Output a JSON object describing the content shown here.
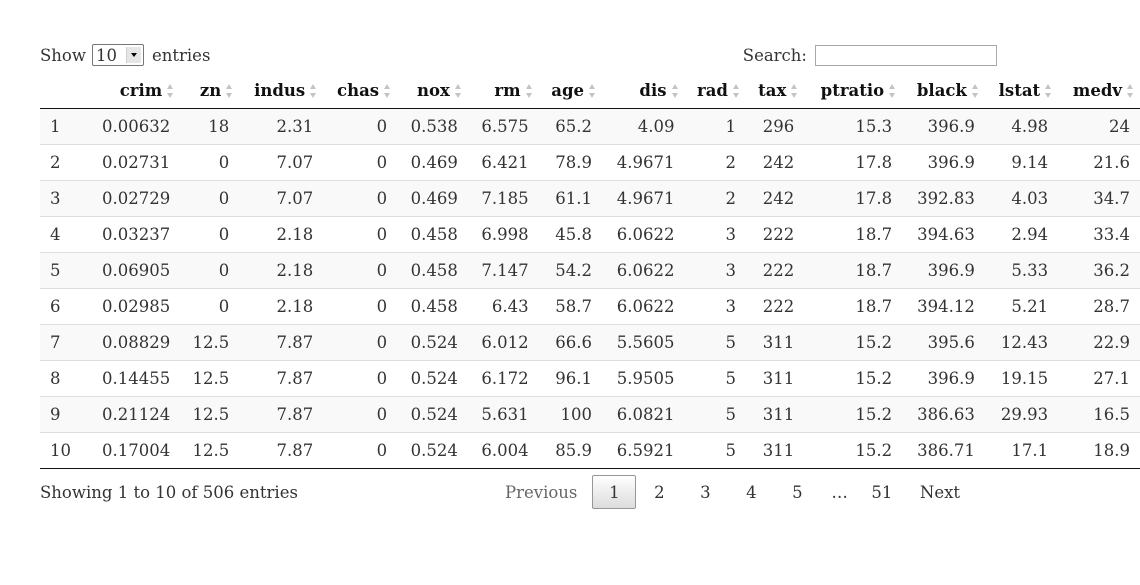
{
  "length": {
    "show_label": "Show",
    "selected": "10",
    "entries_label": "entries"
  },
  "search": {
    "label": "Search:",
    "value": ""
  },
  "table": {
    "columns": [
      "",
      "crim",
      "zn",
      "indus",
      "chas",
      "nox",
      "rm",
      "age",
      "dis",
      "rad",
      "tax",
      "ptratio",
      "black",
      "lstat",
      "medv"
    ],
    "rows": [
      [
        "1",
        "0.00632",
        "18",
        "2.31",
        "0",
        "0.538",
        "6.575",
        "65.2",
        "4.09",
        "1",
        "296",
        "15.3",
        "396.9",
        "4.98",
        "24"
      ],
      [
        "2",
        "0.02731",
        "0",
        "7.07",
        "0",
        "0.469",
        "6.421",
        "78.9",
        "4.9671",
        "2",
        "242",
        "17.8",
        "396.9",
        "9.14",
        "21.6"
      ],
      [
        "3",
        "0.02729",
        "0",
        "7.07",
        "0",
        "0.469",
        "7.185",
        "61.1",
        "4.9671",
        "2",
        "242",
        "17.8",
        "392.83",
        "4.03",
        "34.7"
      ],
      [
        "4",
        "0.03237",
        "0",
        "2.18",
        "0",
        "0.458",
        "6.998",
        "45.8",
        "6.0622",
        "3",
        "222",
        "18.7",
        "394.63",
        "2.94",
        "33.4"
      ],
      [
        "5",
        "0.06905",
        "0",
        "2.18",
        "0",
        "0.458",
        "7.147",
        "54.2",
        "6.0622",
        "3",
        "222",
        "18.7",
        "396.9",
        "5.33",
        "36.2"
      ],
      [
        "6",
        "0.02985",
        "0",
        "2.18",
        "0",
        "0.458",
        "6.43",
        "58.7",
        "6.0622",
        "3",
        "222",
        "18.7",
        "394.12",
        "5.21",
        "28.7"
      ],
      [
        "7",
        "0.08829",
        "12.5",
        "7.87",
        "0",
        "0.524",
        "6.012",
        "66.6",
        "5.5605",
        "5",
        "311",
        "15.2",
        "395.6",
        "12.43",
        "22.9"
      ],
      [
        "8",
        "0.14455",
        "12.5",
        "7.87",
        "0",
        "0.524",
        "6.172",
        "96.1",
        "5.9505",
        "5",
        "311",
        "15.2",
        "396.9",
        "19.15",
        "27.1"
      ],
      [
        "9",
        "0.21124",
        "12.5",
        "7.87",
        "0",
        "0.524",
        "5.631",
        "100",
        "6.0821",
        "5",
        "311",
        "15.2",
        "386.63",
        "29.93",
        "16.5"
      ],
      [
        "10",
        "0.17004",
        "12.5",
        "7.87",
        "0",
        "0.524",
        "6.004",
        "85.9",
        "6.5921",
        "5",
        "311",
        "15.2",
        "386.71",
        "17.1",
        "18.9"
      ]
    ]
  },
  "info": "Showing 1 to 10 of 506 entries",
  "pagination": {
    "previous": "Previous",
    "pages": [
      "1",
      "2",
      "3",
      "4",
      "5",
      "…",
      "51"
    ],
    "current": "1",
    "next": "Next"
  }
}
